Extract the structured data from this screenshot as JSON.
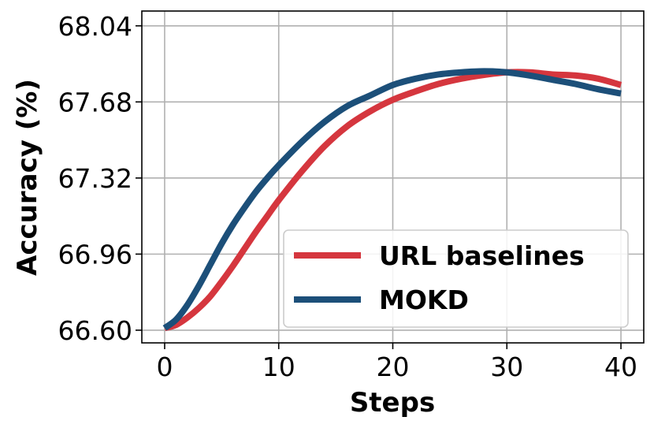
{
  "chart_data": {
    "type": "line",
    "title": "",
    "xlabel": "Steps",
    "ylabel": "Accuracy (%)",
    "xlim": [
      -2,
      42
    ],
    "ylim": [
      66.54,
      68.11
    ],
    "xticks": [
      0,
      10,
      20,
      30,
      40
    ],
    "xtick_labels": [
      "0",
      "10",
      "20",
      "30",
      "40"
    ],
    "yticks": [
      66.6,
      66.96,
      67.32,
      67.68,
      68.04
    ],
    "ytick_labels": [
      "66.60",
      "66.96",
      "67.32",
      "67.68",
      "68.04"
    ],
    "grid": true,
    "legend": "bottom-right",
    "series": [
      {
        "name": "URL baselines",
        "color": "#d5363e",
        "x": [
          0,
          1,
          2,
          3,
          4,
          5,
          6,
          7,
          8,
          9,
          10,
          12,
          14,
          16,
          18,
          20,
          22,
          24,
          26,
          28,
          30,
          32,
          34,
          36,
          38,
          40
        ],
        "y": [
          66.61,
          66.625,
          66.66,
          66.705,
          66.76,
          66.83,
          66.905,
          66.985,
          67.065,
          67.14,
          67.215,
          67.35,
          67.47,
          67.565,
          67.635,
          67.69,
          67.73,
          67.765,
          67.79,
          67.808,
          67.82,
          67.82,
          67.81,
          67.805,
          67.79,
          67.76
        ]
      },
      {
        "name": "MOKD",
        "color": "#1c4f79",
        "x": [
          0,
          1,
          2,
          3,
          4,
          5,
          6,
          7,
          8,
          9,
          10,
          12,
          14,
          16,
          18,
          20,
          22,
          24,
          26,
          28,
          30,
          32,
          34,
          36,
          38,
          40
        ],
        "y": [
          66.61,
          66.65,
          66.72,
          66.81,
          66.91,
          67.01,
          67.1,
          67.18,
          67.255,
          67.32,
          67.38,
          67.49,
          67.585,
          67.66,
          67.71,
          67.76,
          67.79,
          67.81,
          67.82,
          67.825,
          67.82,
          67.805,
          67.785,
          67.765,
          67.74,
          67.72
        ]
      }
    ]
  }
}
